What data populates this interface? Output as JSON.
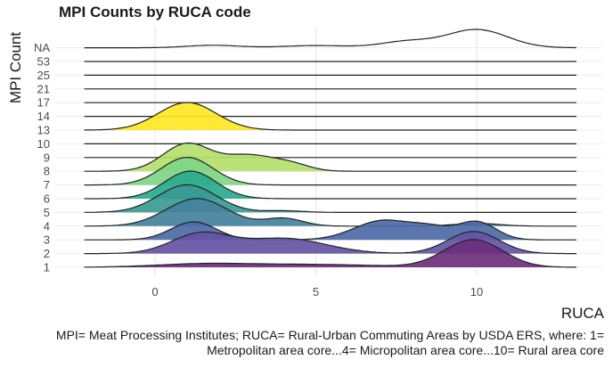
{
  "chart_data": {
    "type": "ridgeline",
    "title": "MPI Counts by RUCA code",
    "xlabel": "RUCA",
    "ylabel": "MPI Count",
    "caption": "MPI= Meat Processing Institutes; RUCA= Rural-Urban Commuting Areas by USDA ERS, where: 1= Metropolitan area core...4= Micropolitan area core...10= Rural area core",
    "xlim": [
      -2.2,
      13.1
    ],
    "x_ticks": [
      0,
      5,
      10
    ],
    "categories": [
      "1",
      "2",
      "3",
      "4",
      "5",
      "6",
      "7",
      "8",
      "9",
      "10",
      "13",
      "14",
      "17",
      "21",
      "25",
      "53",
      "NA"
    ],
    "grid": true,
    "series": [
      {
        "category": "1",
        "color": "#6a2f7c",
        "peaks": [
          [
            1.5,
            0.12,
            1.5
          ],
          [
            5.0,
            0.1,
            2.0
          ],
          [
            9.9,
            1.0,
            0.9
          ]
        ]
      },
      {
        "category": "2",
        "color": "#6554a4",
        "peaks": [
          [
            1.4,
            0.7,
            0.9
          ],
          [
            4.0,
            0.55,
            1.3
          ],
          [
            9.9,
            0.8,
            0.8
          ]
        ]
      },
      {
        "category": "3",
        "color": "#4c6aa5",
        "peaks": [
          [
            1.2,
            0.65,
            0.7
          ],
          [
            7.1,
            0.7,
            0.9
          ],
          [
            10.0,
            0.65,
            0.6
          ],
          [
            8.6,
            0.35,
            0.6
          ]
        ]
      },
      {
        "category": "4",
        "color": "#44819c",
        "peaks": [
          [
            1.3,
            1.0,
            0.95
          ],
          [
            4.0,
            0.28,
            0.6
          ],
          [
            10.0,
            0.1,
            0.7
          ]
        ]
      },
      {
        "category": "5",
        "color": "#3a9a92",
        "peaks": [
          [
            1.0,
            1.0,
            0.9
          ],
          [
            4.0,
            0.06,
            0.6
          ]
        ]
      },
      {
        "category": "6",
        "color": "#2aaa8c",
        "peaks": [
          [
            1.1,
            1.0,
            0.8
          ]
        ]
      },
      {
        "category": "7",
        "color": "#7ed685",
        "peaks": [
          [
            1.0,
            1.0,
            0.8
          ]
        ]
      },
      {
        "category": "8",
        "color": "#b5e06c",
        "peaks": [
          [
            1.0,
            1.0,
            0.75
          ],
          [
            2.9,
            0.55,
            0.75
          ],
          [
            4.2,
            0.25,
            0.6
          ]
        ]
      },
      {
        "category": "9",
        "color": "#f4e34a",
        "peaks": []
      },
      {
        "category": "10",
        "color": "#f4e34a",
        "peaks": []
      },
      {
        "category": "13",
        "color": "#fde725",
        "peaks": [
          [
            1.0,
            1.0,
            0.9
          ]
        ]
      },
      {
        "category": "14",
        "color": "#fde725",
        "peaks": []
      },
      {
        "category": "17",
        "color": "#fde725",
        "peaks": []
      },
      {
        "category": "21",
        "color": "#fde725",
        "peaks": []
      },
      {
        "category": "25",
        "color": "#fde725",
        "peaks": []
      },
      {
        "category": "53",
        "color": "#fde725",
        "peaks": []
      },
      {
        "category": "NA",
        "color": "none",
        "peaks": [
          [
            1.8,
            0.09,
            0.8
          ],
          [
            5.0,
            0.08,
            1.0
          ],
          [
            7.8,
            0.22,
            0.8
          ],
          [
            10.0,
            0.66,
            0.95
          ]
        ]
      }
    ]
  }
}
